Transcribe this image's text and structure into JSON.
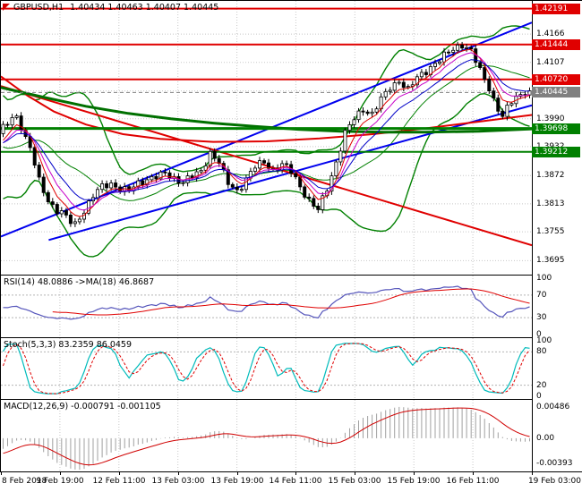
{
  "colors": {
    "background": "#FFFFFF",
    "grid": "#C8C8C8",
    "candle_up": "#FFFFFF",
    "candle_down": "#000000",
    "candle_outline": "#000000",
    "bollinger": "#008000",
    "trend_blue": "#0000EE",
    "trend_red": "#E00000",
    "level_red": "#E00000",
    "level_green": "#008000",
    "current_badge": "#808080",
    "rsi_line": "#5555BB",
    "rsi_ma": "#E00000",
    "stoch_k": "#00BBBB",
    "stoch_d": "#E00000",
    "macd_hist": "#A0A0A0",
    "macd_signal": "#D00000",
    "axis_text": "#000000"
  },
  "chart_data": [
    {
      "type": "candlestick",
      "symbol": "GBPUSD",
      "timeframe": "H1",
      "title_symbol": "GBPUSD,H1",
      "ohlc_text": "1.40434 1.40463 1.40407 1.40445",
      "open": "1.40434",
      "high": "1.40463",
      "low": "1.40407",
      "close": "1.40445",
      "y_range": [
        1.3666,
        1.4235
      ],
      "y_ticks": [
        "1.4166",
        "1.4107",
        "1.4048",
        "1.3990",
        "1.3932",
        "1.3872",
        "1.3813",
        "1.3755",
        "1.3695"
      ],
      "x_labels": [
        "8 Feb 2018",
        "9 Feb 19:00",
        "12 Feb 11:00",
        "13 Feb 03:00",
        "13 Feb 19:00",
        "14 Feb 11:00",
        "15 Feb 03:00",
        "15 Feb 19:00",
        "16 Feb 11:00",
        "19 Feb 03:00"
      ],
      "pre_closes": [
        1.404,
        1.402,
        1.399,
        1.395,
        1.391,
        1.387,
        1.383,
        1.385,
        1.388,
        1.392,
        1.396,
        1.399,
        1.401,
        1.398,
        1.394,
        1.39,
        1.387,
        1.389,
        1.393,
        1.396
      ],
      "closes": [
        1.397,
        1.398,
        1.399,
        1.3995,
        1.3975,
        1.395,
        1.393,
        1.3895,
        1.386,
        1.384,
        1.382,
        1.381,
        1.38,
        1.3795,
        1.3785,
        1.3775,
        1.377,
        1.3785,
        1.38,
        1.3815,
        1.383,
        1.384,
        1.3848,
        1.3852,
        1.3855,
        1.385,
        1.3845,
        1.3842,
        1.384,
        1.3848,
        1.3855,
        1.386,
        1.3865,
        1.3868,
        1.387,
        1.3872,
        1.3875,
        1.387,
        1.3866,
        1.3862,
        1.386,
        1.3865,
        1.387,
        1.3875,
        1.388,
        1.39,
        1.392,
        1.391,
        1.39,
        1.3875,
        1.3855,
        1.3848,
        1.384,
        1.3852,
        1.3865,
        1.3878,
        1.389,
        1.3895,
        1.39,
        1.3892,
        1.3885,
        1.389,
        1.3895,
        1.3888,
        1.388,
        1.3865,
        1.385,
        1.3835,
        1.382,
        1.381,
        1.38,
        1.3822,
        1.3845,
        1.3872,
        1.39,
        1.393,
        1.396,
        1.3975,
        1.399,
        1.4,
        1.401,
        1.4005,
        1.4,
        1.4015,
        1.403,
        1.4042,
        1.4055,
        1.4062,
        1.407,
        1.406,
        1.405,
        1.4062,
        1.4075,
        1.4082,
        1.409,
        1.4098,
        1.4105,
        1.4112,
        1.412,
        1.4128,
        1.4135,
        1.414,
        1.4145,
        1.4138,
        1.413,
        1.411,
        1.409,
        1.4072,
        1.4055,
        1.403,
        1.401,
        1.3995,
        1.401,
        1.4025,
        1.4035,
        1.404,
        1.4048,
        1.40445
      ],
      "levels": [
        {
          "price": 1.42191,
          "label": "1.42191",
          "color": "#E00000",
          "width": 2
        },
        {
          "price": 1.41444,
          "label": "1.41444",
          "color": "#E00000",
          "width": 2
        },
        {
          "price": 1.4072,
          "label": "1.40720",
          "color": "#E00000",
          "width": 2
        },
        {
          "price": 1.39698,
          "label": "1.39698",
          "color": "#008000",
          "width": 3
        },
        {
          "price": 1.39212,
          "label": "1.39212",
          "color": "#008000",
          "width": 2
        }
      ],
      "current_price": {
        "price": 1.40445,
        "label": "1.40445",
        "color": "#808080"
      },
      "overlays": [
        {
          "name": "trendline-blue-steep",
          "color": "#0000EE",
          "width": 2,
          "points": [
            [
              0,
              1.3745
            ],
            [
              1,
              1.419
            ]
          ]
        },
        {
          "name": "trendline-blue-shallow",
          "color": "#0000EE",
          "width": 2,
          "points": [
            [
              0.09,
              1.3738
            ],
            [
              1,
              1.4018
            ]
          ]
        },
        {
          "name": "trendline-red-descending",
          "color": "#E00000",
          "width": 2,
          "points": [
            [
              0,
              1.4058
            ],
            [
              1,
              1.3727
            ]
          ]
        },
        {
          "name": "ma-curve-red",
          "color": "#E00000",
          "width": 2,
          "points": [
            [
              0,
              1.4078
            ],
            [
              0.05,
              1.4038
            ],
            [
              0.1,
              1.4005
            ],
            [
              0.16,
              1.3978
            ],
            [
              0.23,
              1.3958
            ],
            [
              0.3,
              1.3948
            ],
            [
              0.4,
              1.3942
            ],
            [
              0.5,
              1.3943
            ],
            [
              0.6,
              1.3949
            ],
            [
              0.7,
              1.3958
            ],
            [
              0.8,
              1.397
            ],
            [
              0.9,
              1.3984
            ],
            [
              1,
              1.3998
            ]
          ]
        },
        {
          "name": "ma-curve-green",
          "color": "#007000",
          "width": 3,
          "points": [
            [
              0,
              1.4055
            ],
            [
              0.08,
              1.4035
            ],
            [
              0.16,
              1.4016
            ],
            [
              0.24,
              1.4001
            ],
            [
              0.32,
              1.399
            ],
            [
              0.4,
              1.3981
            ],
            [
              0.48,
              1.3974
            ],
            [
              0.56,
              1.3968
            ],
            [
              0.64,
              1.3964
            ],
            [
              0.72,
              1.3962
            ],
            [
              0.8,
              1.3962
            ],
            [
              0.9,
              1.3964
            ],
            [
              1,
              1.3969
            ]
          ]
        }
      ],
      "bollinger": {
        "period": 20,
        "deviation": 2,
        "color": "#008000"
      },
      "fast_mas": [
        {
          "period": 5,
          "color": "#E00000"
        },
        {
          "period": 8,
          "color": "#C800C8"
        },
        {
          "period": 13,
          "color": "#0000C8"
        }
      ]
    },
    {
      "type": "line",
      "name": "RSI",
      "label": "RSI(14) 48.0886 ->MA(18) 46.8687",
      "period": 14,
      "value": 48.0886,
      "ma_period": 18,
      "ma_value": 46.8687,
      "levels": [
        70,
        30
      ],
      "y_ticks": [
        "100",
        "70",
        "30",
        "0"
      ],
      "range": [
        0,
        100
      ]
    },
    {
      "type": "line",
      "name": "Stochastic",
      "label": "Stoch(5,3,3) 83.2359 86.0459",
      "params": "5,3,3",
      "value": 83.2359,
      "signal_value": 86.0459,
      "levels": [
        80,
        20
      ],
      "y_ticks": [
        "100",
        "80",
        "20",
        "0"
      ],
      "range": [
        0,
        100
      ]
    },
    {
      "type": "histogram",
      "name": "MACD",
      "label": "MACD(12,26,9) -0.000791 -0.001105",
      "params": "12,26,9",
      "value": -0.000791,
      "signal_value": -0.001105,
      "y_ticks": [
        {
          "v": 0.00486,
          "label": "0.00486"
        },
        {
          "v": 0,
          "label": "0.00"
        },
        {
          "v": -0.00393,
          "label": "-0.00393"
        }
      ],
      "range": [
        -0.0052,
        0.006
      ]
    }
  ]
}
